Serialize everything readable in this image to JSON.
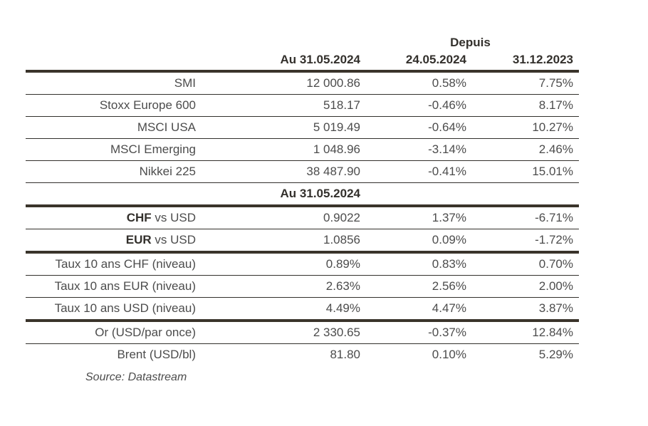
{
  "header": {
    "depuis_label": "Depuis",
    "col_au": "Au 31.05.2024",
    "col_since_1": "24.05.2024",
    "col_since_2": "31.12.2023"
  },
  "subheader": {
    "label": "Au 31.05.2024"
  },
  "rows": [
    {
      "label_bold": "",
      "label": "SMI",
      "v1": "12 000.86",
      "v2": "0.58%",
      "v3": "7.75%"
    },
    {
      "label_bold": "",
      "label": "Stoxx Europe 600",
      "v1": "518.17",
      "v2": "-0.46%",
      "v3": "8.17%"
    },
    {
      "label_bold": "",
      "label": "MSCI USA",
      "v1": "5 019.49",
      "v2": "-0.64%",
      "v3": "10.27%"
    },
    {
      "label_bold": "",
      "label": "MSCI Emerging",
      "v1": "1 048.96",
      "v2": "-3.14%",
      "v3": "2.46%"
    },
    {
      "label_bold": "",
      "label": "Nikkei 225",
      "v1": "38 487.90",
      "v2": "-0.41%",
      "v3": "15.01%"
    },
    {
      "label_bold": "CHF",
      "label": " vs USD",
      "v1": "0.9022",
      "v2": "1.37%",
      "v3": "-6.71%"
    },
    {
      "label_bold": "EUR",
      "label": " vs USD",
      "v1": "1.0856",
      "v2": "0.09%",
      "v3": "-1.72%"
    },
    {
      "label_bold": "",
      "label": "Taux 10 ans CHF (niveau)",
      "v1": "0.89%",
      "v2": "0.83%",
      "v3": "0.70%"
    },
    {
      "label_bold": "",
      "label": "Taux 10 ans EUR (niveau)",
      "v1": "2.63%",
      "v2": "2.56%",
      "v3": "2.00%"
    },
    {
      "label_bold": "",
      "label": "Taux 10 ans USD (niveau)",
      "v1": "4.49%",
      "v2": "4.47%",
      "v3": "3.87%"
    },
    {
      "label_bold": "",
      "label": "Or (USD/par once)",
      "v1": "2 330.65",
      "v2": "-0.37%",
      "v3": "12.84%"
    },
    {
      "label_bold": "",
      "label": "Brent (USD/bl)",
      "v1": "81.80",
      "v2": "0.10%",
      "v3": "5.29%"
    }
  ],
  "source_note": "Source: Datastream",
  "colors": {
    "thick_line": "#3a342b",
    "thin_line": "#32302c",
    "text": "#4c4c4c",
    "bold_text": "#33302c",
    "background": "#ffffff"
  },
  "chart_data": {
    "type": "table",
    "title": "",
    "column_headers": [
      "",
      "Au 31.05.2024",
      "Depuis 24.05.2024",
      "Depuis 31.12.2023"
    ],
    "rows": [
      [
        "SMI",
        "12 000.86",
        "0.58%",
        "7.75%"
      ],
      [
        "Stoxx Europe 600",
        "518.17",
        "-0.46%",
        "8.17%"
      ],
      [
        "MSCI USA",
        "5 019.49",
        "-0.64%",
        "10.27%"
      ],
      [
        "MSCI Emerging",
        "1 048.96",
        "-3.14%",
        "2.46%"
      ],
      [
        "Nikkei 225",
        "38 487.90",
        "-0.41%",
        "15.01%"
      ],
      [
        "CHF vs USD",
        "0.9022",
        "1.37%",
        "-6.71%"
      ],
      [
        "EUR vs USD",
        "1.0856",
        "0.09%",
        "-1.72%"
      ],
      [
        "Taux 10 ans CHF (niveau)",
        "0.89%",
        "0.83%",
        "0.70%"
      ],
      [
        "Taux 10 ans EUR (niveau)",
        "2.63%",
        "2.56%",
        "2.00%"
      ],
      [
        "Taux 10 ans USD (niveau)",
        "4.49%",
        "4.47%",
        "3.87%"
      ],
      [
        "Or (USD/par once)",
        "2 330.65",
        "-0.37%",
        "12.84%"
      ],
      [
        "Brent (USD/bl)",
        "81.80",
        "0.10%",
        "5.29%"
      ]
    ]
  }
}
